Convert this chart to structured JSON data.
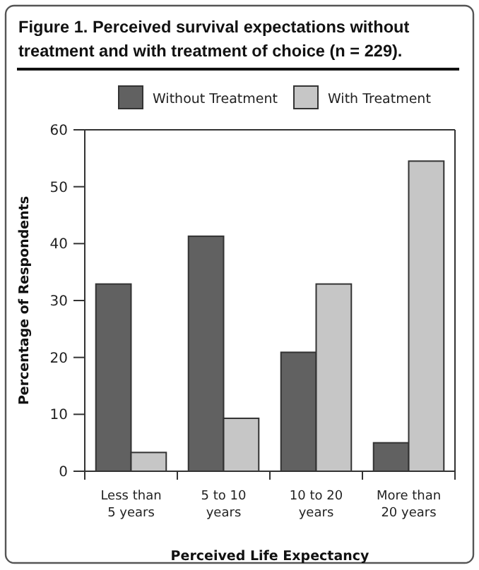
{
  "chart_data": {
    "type": "bar",
    "title": "Figure 1. Perceived survival expectations without treatment and with treatment of choice (n = 229).",
    "xlabel": "Perceived Life Expectancy",
    "ylabel": "Percentage of Respondents",
    "categories": [
      "Less than\n5 years",
      "5 to 10\nyears",
      "10 to 20\nyears",
      "More than\n20 years"
    ],
    "series": [
      {
        "name": "Without Treatment",
        "color": "#616161",
        "values": [
          32.9,
          41.3,
          20.9,
          5.0
        ]
      },
      {
        "name": "With Treatment",
        "color": "#c6c6c6",
        "values": [
          3.3,
          9.3,
          32.9,
          54.5
        ]
      }
    ],
    "ylim": [
      0,
      60
    ],
    "yticks": [
      0,
      10,
      20,
      30,
      40,
      50,
      60
    ],
    "grid": false,
    "legend": "top"
  }
}
